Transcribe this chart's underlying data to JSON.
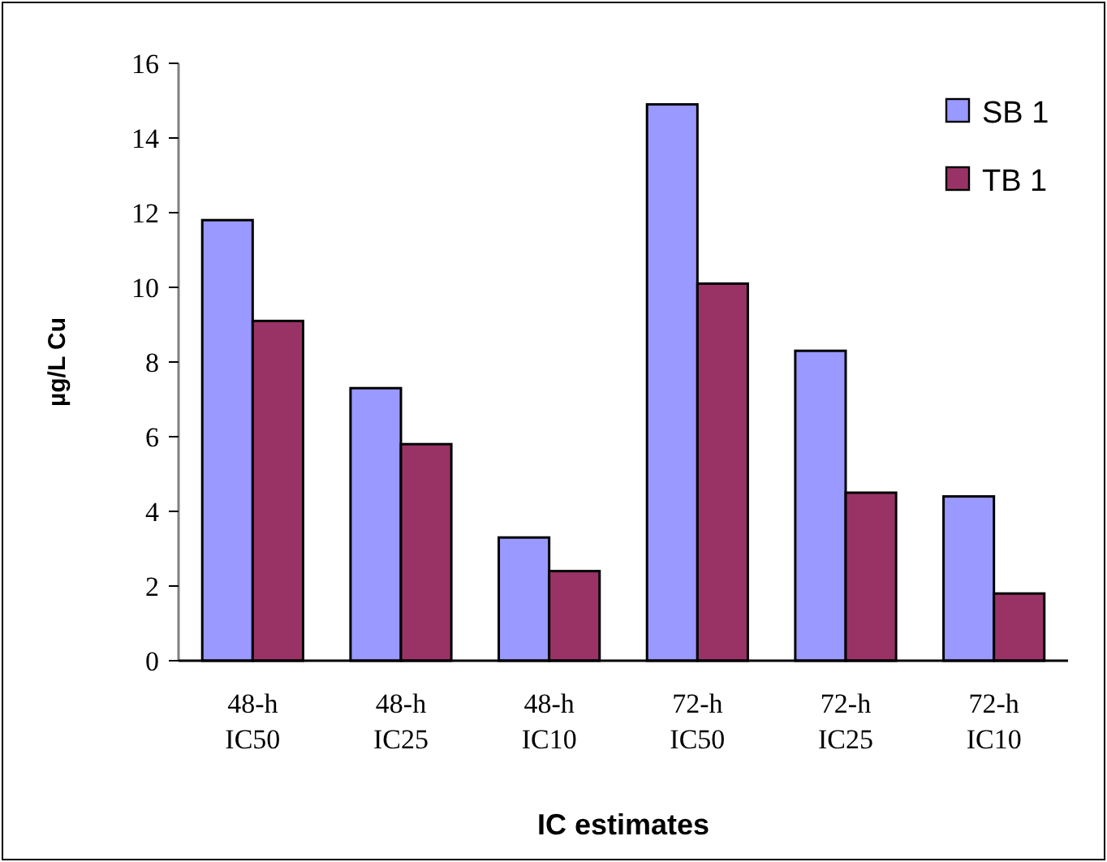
{
  "chart_data": {
    "type": "bar",
    "xlabel": "IC estimates",
    "ylabel": "µg/L Cu",
    "categories": [
      "48-h\nIC50",
      "48-h\nIC25",
      "48-h\nIC10",
      "72-h\nIC50",
      "72-h\nIC25",
      "72-h\nIC10"
    ],
    "series": [
      {
        "name": "SB 1",
        "color": "#9999ff",
        "values": [
          11.8,
          7.3,
          3.3,
          14.9,
          8.3,
          4.4
        ]
      },
      {
        "name": "TB 1",
        "color": "#993366",
        "values": [
          9.1,
          5.8,
          2.4,
          10.1,
          4.5,
          1.8
        ]
      }
    ],
    "ylim": [
      0,
      16
    ],
    "yticks": [
      0,
      2,
      4,
      6,
      8,
      10,
      12,
      14,
      16
    ],
    "grid": false,
    "legend": "top right"
  }
}
